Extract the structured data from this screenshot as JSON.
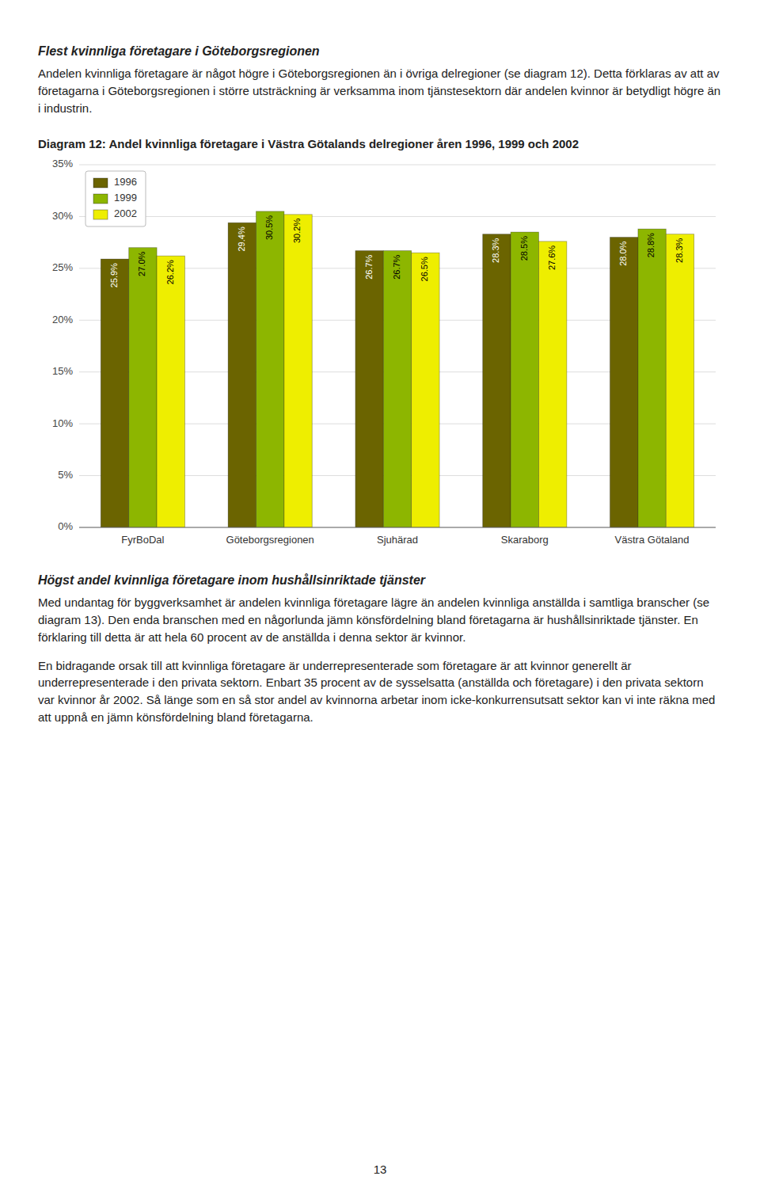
{
  "heading_above": "Flest kvinnliga företagare i Göteborgsregionen",
  "text_above": "Andelen kvinnliga företagare är något högre i Göteborgsregionen än i övriga delregioner (se diagram 12). Detta förklaras av att av företagarna i Göteborgsregionen i större utsträckning är verksamma inom tjänstesektorn där andelen kvinnor är betydligt högre än i industrin.",
  "chart_data": {
    "type": "bar",
    "title": "Diagram 12: Andel kvinnliga företagare i Västra Götalands delregioner åren 1996, 1999 och 2002",
    "categories": [
      "FyrBoDal",
      "Göteborgsregionen",
      "Sjuhärad",
      "Skaraborg",
      "Västra Götaland"
    ],
    "series": [
      {
        "name": "1996",
        "color": "#6b6400",
        "values": [
          25.9,
          29.4,
          26.7,
          28.3,
          28.0
        ],
        "value_labels": [
          "25.9%",
          "29.4%",
          "26.7%",
          "28.3%",
          "28.0%"
        ]
      },
      {
        "name": "1999",
        "color": "#8db600",
        "values": [
          27.0,
          30.5,
          26.7,
          28.5,
          28.8
        ],
        "value_labels": [
          "27.0%",
          "30.5%",
          "26.7%",
          "28.5%",
          "28.8%"
        ]
      },
      {
        "name": "2002",
        "color": "#eeee00",
        "values": [
          26.2,
          30.2,
          26.5,
          27.6,
          28.3
        ],
        "value_labels": [
          "26.2%",
          "30.2%",
          "26.5%",
          "27.6%",
          "28.3%"
        ]
      }
    ],
    "ylim": [
      0,
      35
    ],
    "yticks": [
      {
        "value": 0,
        "label": "0%"
      },
      {
        "value": 5,
        "label": "5%"
      },
      {
        "value": 10,
        "label": "10%"
      },
      {
        "value": 15,
        "label": "15%"
      },
      {
        "value": 20,
        "label": "20%"
      },
      {
        "value": 25,
        "label": "25%"
      },
      {
        "value": 30,
        "label": "30%"
      },
      {
        "value": 35,
        "label": "35%"
      }
    ],
    "grid": true,
    "legend": "upper left",
    "data_labels": true
  },
  "heading_below": "Högst andel kvinnliga företagare inom hushållsinriktade tjänster",
  "text_below": [
    "Med undantag för byggverksamhet är andelen kvinnliga företagare lägre än andelen kvinnliga anställda i samtliga branscher (se diagram 13). Den enda branschen med en någorlunda jämn könsfördelning bland företagarna är hushållsinriktade tjänster. En förklaring till detta är att hela 60 procent av de anställda i denna sektor är kvinnor.",
    "En bidragande orsak till att kvinnliga företagare är underrepresenterade som företagare är att kvinnor generellt är underrepresenterade i den privata sektorn. Enbart 35 procent av de sysselsatta (anställda och företagare) i den privata sektorn var kvinnor år 2002. Så länge som en så stor andel av kvinnorna arbetar inom icke-konkurrensutsatt sektor kan vi inte räkna med att uppnå en jämn könsfördelning bland företagarna."
  ],
  "page_number": "13"
}
